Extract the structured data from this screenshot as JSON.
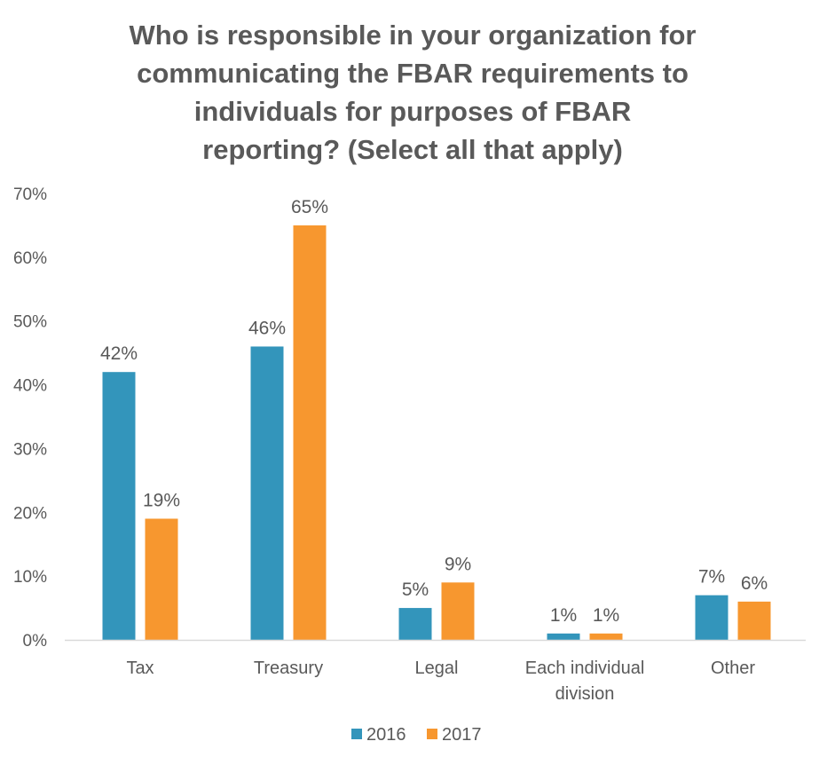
{
  "chart_data": {
    "type": "bar",
    "title": "Who is responsible in your organization for\ncommunicating the FBAR requirements to\nindividuals for purposes of FBAR\nreporting?  (Select all that apply)",
    "categories": [
      "Tax",
      "Treasury",
      "Legal",
      "Each individual\ndivision",
      "Other"
    ],
    "series": [
      {
        "name": "2016",
        "color": "#3395bb",
        "values": [
          42,
          46,
          5,
          1,
          7
        ],
        "labels": [
          "42%",
          "46%",
          "5%",
          "1%",
          "7%"
        ]
      },
      {
        "name": "2017",
        "color": "#f7972f",
        "values": [
          19,
          65,
          9,
          1,
          6
        ],
        "labels": [
          "19%",
          "65%",
          "9%",
          "1%",
          "6%"
        ]
      }
    ],
    "y_ticks": [
      "0%",
      "10%",
      "20%",
      "30%",
      "40%",
      "50%",
      "60%",
      "70%"
    ],
    "ylim": [
      0,
      70
    ],
    "xlabel": "",
    "ylabel": "",
    "grid": false,
    "legend": "bottom"
  }
}
